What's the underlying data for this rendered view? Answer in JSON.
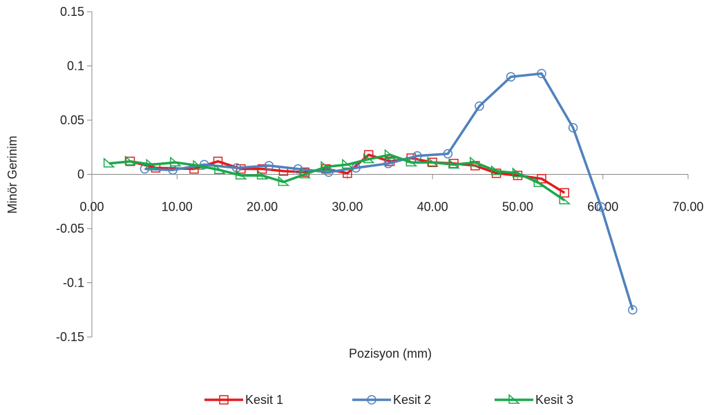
{
  "chart_data": {
    "type": "line",
    "title": "",
    "xlabel": "Pozisyon  (mm)",
    "ylabel": "Minör Gerinim",
    "xlim": [
      0,
      70
    ],
    "ylim": [
      -0.15,
      0.15
    ],
    "x_ticks": [
      0,
      10,
      20,
      30,
      40,
      50,
      60,
      70
    ],
    "x_tick_labels": [
      "0.00",
      "10.00",
      "20.00",
      "30.00",
      "40.00",
      "50.00",
      "60.00",
      "70.00"
    ],
    "y_ticks": [
      0.15,
      0.1,
      0.05,
      0,
      -0.05,
      -0.1,
      -0.15
    ],
    "y_tick_labels": [
      "0.15",
      "0.1",
      "0.05",
      "0",
      "-0.05",
      "-0.1",
      "-0.15"
    ],
    "grid": false,
    "legend_position": "bottom",
    "series": [
      {
        "name": "Kesit 1",
        "color": "#e31a1c",
        "marker": "square",
        "x": [
          4.5,
          7.5,
          12.0,
          14.8,
          17.5,
          20.0,
          22.5,
          25.0,
          27.5,
          30.0,
          32.5,
          35.0,
          37.5,
          40.0,
          42.5,
          45.0,
          47.5,
          50.0,
          52.8,
          55.5
        ],
        "y": [
          0.012,
          0.006,
          0.005,
          0.012,
          0.005,
          0.005,
          0.003,
          0.002,
          0.005,
          0.001,
          0.018,
          0.012,
          0.015,
          0.011,
          0.01,
          0.008,
          0.001,
          -0.001,
          -0.004,
          -0.017
        ]
      },
      {
        "name": "Kesit 2",
        "color": "#4f81bd",
        "marker": "circle",
        "x": [
          6.2,
          9.5,
          13.2,
          17.0,
          20.8,
          24.2,
          27.8,
          31.0,
          34.8,
          38.2,
          41.8,
          45.5,
          49.2,
          52.8,
          56.5,
          59.8,
          63.5
        ],
        "y": [
          0.005,
          0.004,
          0.009,
          0.006,
          0.008,
          0.005,
          0.002,
          0.006,
          0.01,
          0.017,
          0.019,
          0.063,
          0.09,
          0.093,
          0.043,
          -0.03,
          -0.125
        ]
      },
      {
        "name": "Kesit 3",
        "color": "#1aa84a",
        "marker": "triangle",
        "x": [
          2.0,
          4.5,
          7.0,
          9.8,
          12.5,
          15.0,
          17.5,
          20.0,
          22.5,
          25.0,
          27.5,
          30.0,
          32.5,
          35.0,
          37.5,
          40.0,
          42.5,
          45.0,
          47.5,
          50.0,
          52.5,
          55.5
        ],
        "y": [
          0.01,
          0.012,
          0.009,
          0.011,
          0.008,
          0.004,
          -0.001,
          -0.001,
          -0.007,
          0.0,
          0.007,
          0.009,
          0.014,
          0.018,
          0.011,
          0.011,
          0.009,
          0.011,
          0.003,
          0.001,
          -0.008,
          -0.024
        ]
      }
    ]
  }
}
